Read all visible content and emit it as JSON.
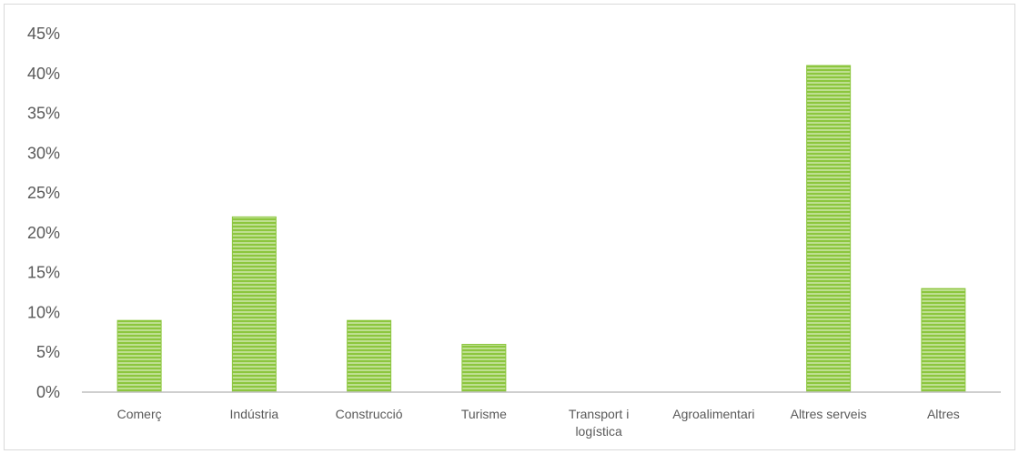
{
  "chart_data": {
    "type": "bar",
    "categories": [
      "Comerç",
      "Indústria",
      "Construcció",
      "Turisme",
      "Transport i logística",
      "Agroalimentari",
      "Altres serveis",
      "Altres"
    ],
    "category_lines": [
      [
        "Comerç"
      ],
      [
        "Indústria"
      ],
      [
        "Construcció"
      ],
      [
        "Turisme"
      ],
      [
        "Transport i",
        "logística"
      ],
      [
        "Agroalimentari"
      ],
      [
        "Altres serveis"
      ],
      [
        "Altres"
      ]
    ],
    "values": [
      0.09,
      0.22,
      0.09,
      0.06,
      0.0,
      0.0,
      0.41,
      0.13
    ],
    "yticks": [
      "0%",
      "5%",
      "10%",
      "15%",
      "20%",
      "25%",
      "30%",
      "35%",
      "40%",
      "45%"
    ],
    "ylim": [
      0,
      0.45
    ],
    "title": "",
    "xlabel": "",
    "ylabel": "",
    "grid": false,
    "colors": {
      "bar": "#8cc63e",
      "bar_stripe": "#dff0c6",
      "axis": "#bfbfbf",
      "text": "#595959"
    }
  }
}
